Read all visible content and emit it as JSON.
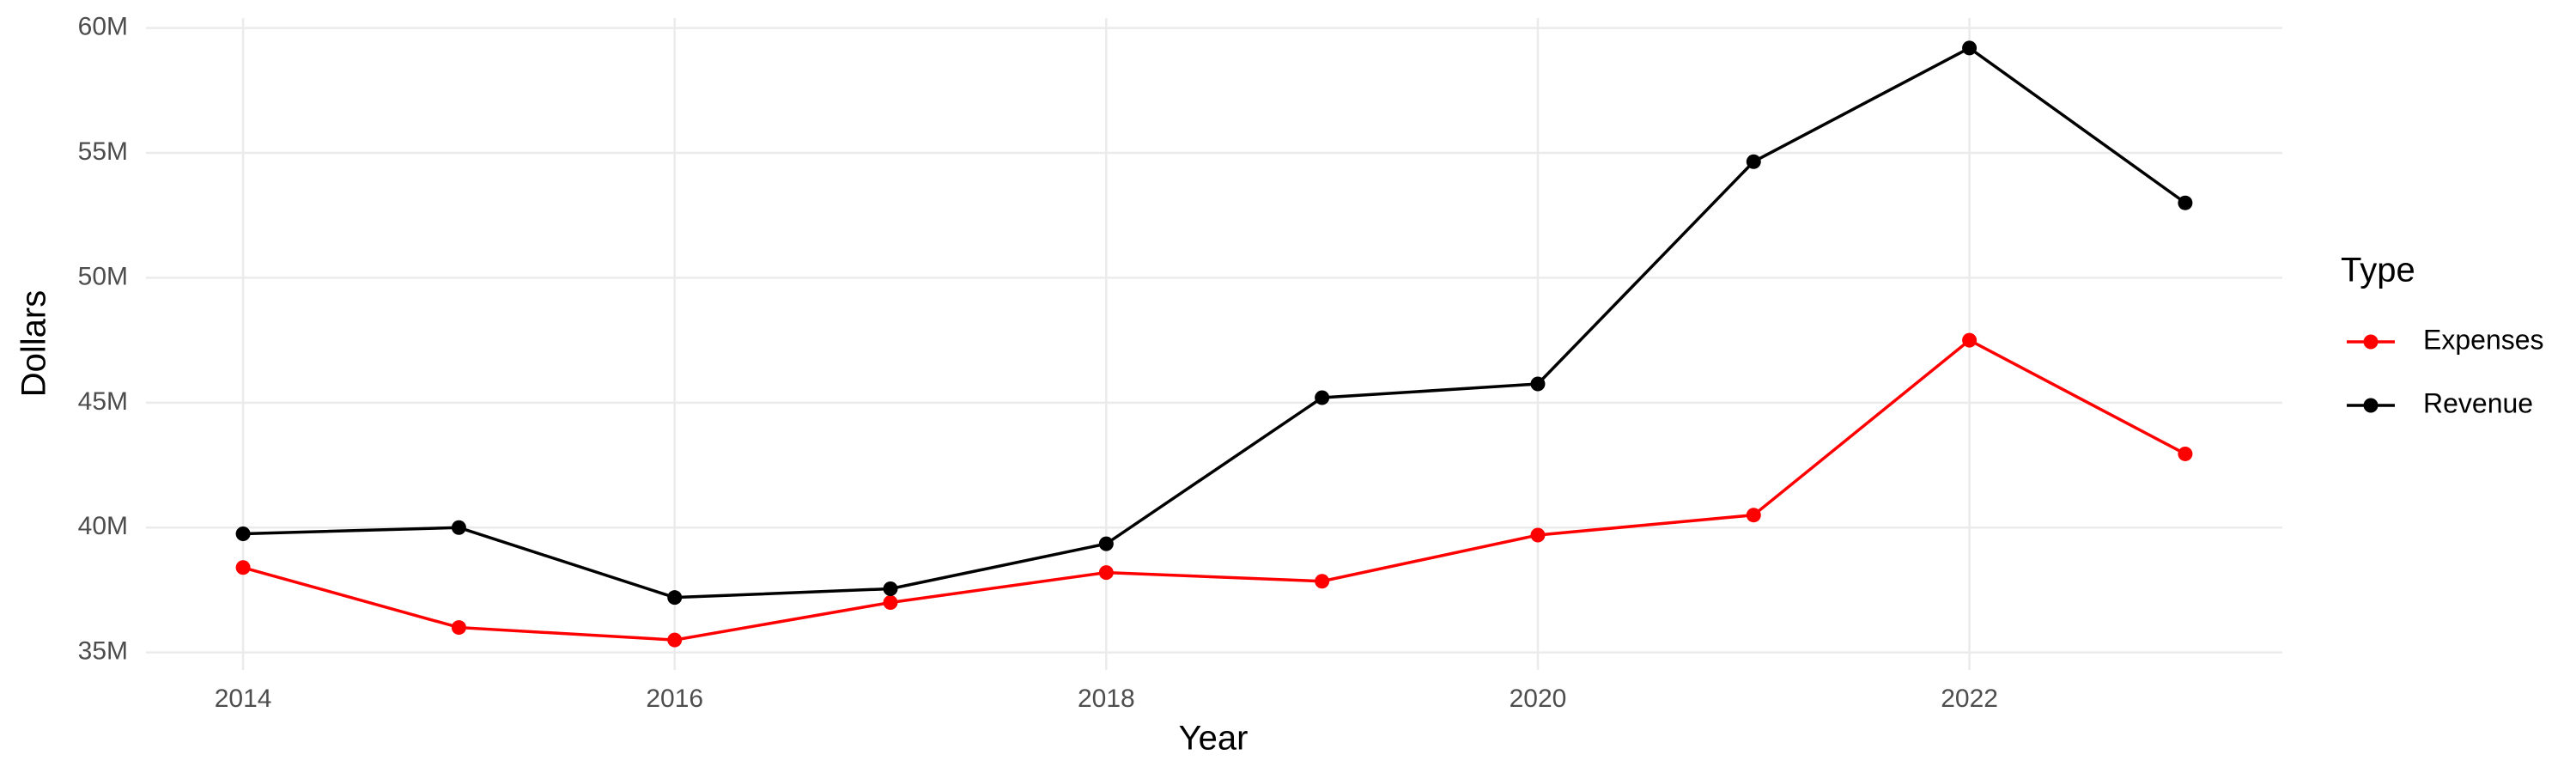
{
  "chart_data": {
    "type": "line",
    "x_label": "Year",
    "y_label": "Dollars",
    "legend_title": "Type",
    "x": [
      2014,
      2015,
      2016,
      2017,
      2018,
      2019,
      2020,
      2021,
      2022,
      2023
    ],
    "series": [
      {
        "name": "Expenses",
        "color": "#ff0000",
        "values": [
          38400000,
          36000000,
          35500000,
          37000000,
          38200000,
          37850000,
          39700000,
          40500000,
          47500000,
          42950000
        ]
      },
      {
        "name": "Revenue",
        "color": "#000000",
        "values": [
          39750000,
          40000000,
          37200000,
          37550000,
          39350000,
          45200000,
          45750000,
          54650000,
          59200000,
          53000000
        ]
      }
    ],
    "xlim": [
      2013.55,
      2023.45
    ],
    "xticks": [
      2014,
      2016,
      2018,
      2020,
      2022
    ],
    "ylim": [
      34300000,
      60400000
    ],
    "yticks": [
      {
        "value": 35000000,
        "label": "35M"
      },
      {
        "value": 40000000,
        "label": "40M"
      },
      {
        "value": 45000000,
        "label": "45M"
      },
      {
        "value": 50000000,
        "label": "50M"
      },
      {
        "value": 55000000,
        "label": "55M"
      },
      {
        "value": 60000000,
        "label": "60M"
      }
    ],
    "grid": true,
    "legend_position": "right"
  }
}
